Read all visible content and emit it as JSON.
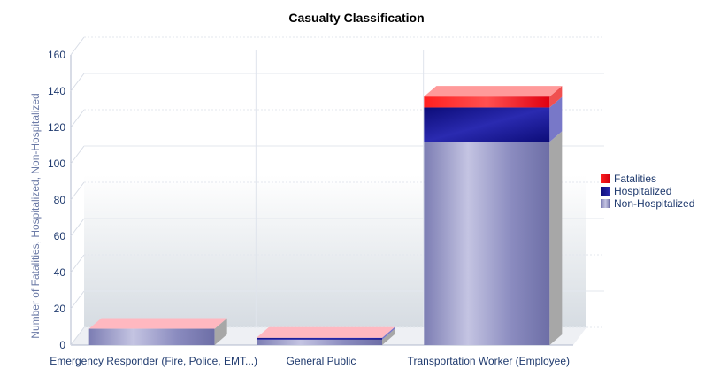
{
  "title": "Casualty Classification",
  "chart_data": {
    "type": "bar",
    "stacked": true,
    "title": "Casualty Classification",
    "xlabel": "",
    "ylabel": "Number of Fatalities, Hospitalized, Non-Hospitalized",
    "ylim": [
      0,
      160
    ],
    "yticks": [
      0,
      20,
      40,
      60,
      80,
      100,
      120,
      140,
      160
    ],
    "categories": [
      "Emergency Responder (Fire, Police, EMT...)",
      "General Public",
      "Transportation Worker (Employee)"
    ],
    "series": [
      {
        "name": "Non-Hospitalized",
        "values": [
          9,
          3,
          112
        ]
      },
      {
        "name": "Hospitalized",
        "values": [
          0,
          1,
          19
        ]
      },
      {
        "name": "Fatalities",
        "values": [
          0,
          0,
          6
        ]
      }
    ],
    "legend_position": "right",
    "grid": true
  },
  "legend": [
    {
      "label": "Fatalities",
      "color": "#e8141c"
    },
    {
      "label": "Hospitalized",
      "color": "#14148c"
    },
    {
      "label": "Non-Hospitalized",
      "color": "#8b8cc0"
    }
  ]
}
